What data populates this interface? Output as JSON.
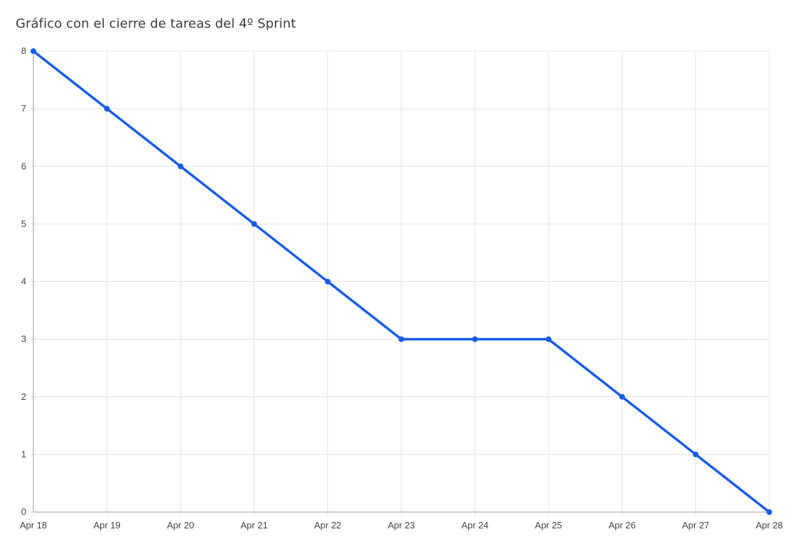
{
  "chart_data": {
    "type": "line",
    "title": "Gráfico con el cierre de tareas del 4º Sprint",
    "xlabel": "",
    "ylabel": "",
    "categories": [
      "Apr 18",
      "Apr 19",
      "Apr 20",
      "Apr 21",
      "Apr 22",
      "Apr 23",
      "Apr 24",
      "Apr 25",
      "Apr 26",
      "Apr 27",
      "Apr 28"
    ],
    "series": [
      {
        "values": [
          8,
          7,
          6,
          5,
          4,
          3,
          3,
          3,
          2,
          1,
          0
        ],
        "color": "#1a5ce8"
      }
    ],
    "ylim": [
      0,
      8
    ],
    "yticks": [
      "0",
      "1",
      "2",
      "3",
      "4",
      "5",
      "6",
      "7",
      "8"
    ],
    "grid": true,
    "legend": "none"
  }
}
